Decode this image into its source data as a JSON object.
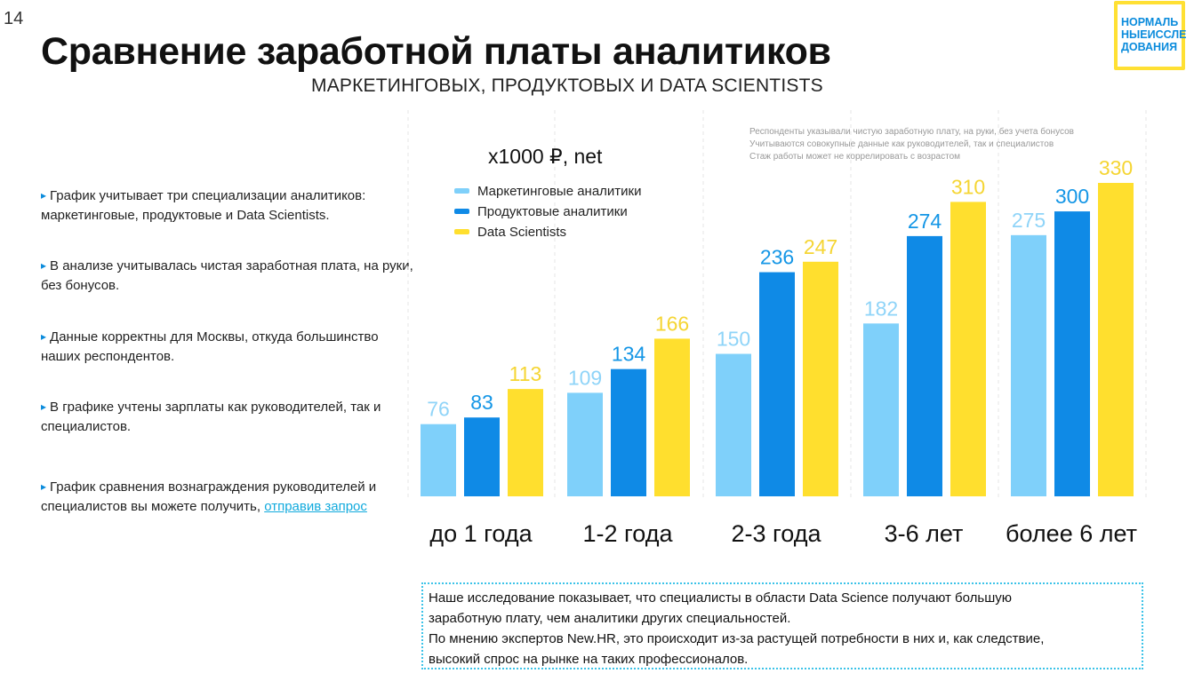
{
  "page": {
    "number": "14"
  },
  "header": {
    "title": "Сравнение заработной платы аналитиков",
    "subtitle": "МАРКЕТИНГОВЫХ, ПРОДУКТОВЫХ И DATA SCIENTISTS"
  },
  "logo": {
    "lines": [
      "НОРМАЛЬ",
      "НЫЕИССЛЕ",
      "ДОВАНИЯ"
    ]
  },
  "bullets": [
    {
      "text": "График учитывает три специализации аналитиков: маркетинговые, продуктовые и Data Scientists."
    },
    {
      "text": "В анализе учитывалась чистая заработная плата, на руки, без бонусов."
    },
    {
      "text": "Данные корректны для Москвы, откуда большинство наших респондентов."
    },
    {
      "text": "В графике учтены зарплаты как руководителей, так и специалистов."
    },
    {
      "text": "График сравнения вознаграждения руководителей и специалистов вы можете получить, ",
      "link": "отправив запрос"
    }
  ],
  "notes": [
    "Респонденты указывали чистую заработную плату, на руки, без учета бонусов",
    "Учитываются совокупные данные как руководителей, так и специалистов",
    "Стаж работы может не коррелировать с возрастом"
  ],
  "footer_note": {
    "line1": "Наше исследование показывает, что специалисты в области Data Science получают большую",
    "line2": "заработную плату, чем аналитики других специальностей.",
    "line3": "По мнению экспертов New.HR, это происходит из-за растущей потребности в них и, как следствие,",
    "line4": "высокий спрос на рынке на таких профессионалов."
  },
  "colors": {
    "marketing": "#7fd0fa",
    "product": "#0f8ae6",
    "ds": "#ffdf2e"
  },
  "chart_data": {
    "type": "bar",
    "unit_label": "x1000 ₽, net",
    "categories": [
      "до 1 года",
      "1-2 года",
      "2-3 года",
      "3-6 лет",
      "более 6 лет"
    ],
    "series": [
      {
        "name": "Маркетинговые аналитики",
        "color": "#7fd0fa",
        "label_color": "#8fd4f8",
        "values": [
          76,
          109,
          150,
          182,
          275
        ]
      },
      {
        "name": "Продуктовые аналитики",
        "color": "#0f8ae6",
        "label_color": "#1496e6",
        "values": [
          83,
          134,
          236,
          274,
          300
        ]
      },
      {
        "name": "Data Scientists",
        "color": "#ffdf2e",
        "label_color": "#f5d533",
        "values": [
          113,
          166,
          247,
          310,
          330
        ]
      }
    ],
    "ylim": [
      0,
      330
    ],
    "grid": false,
    "legend": "top-left"
  }
}
